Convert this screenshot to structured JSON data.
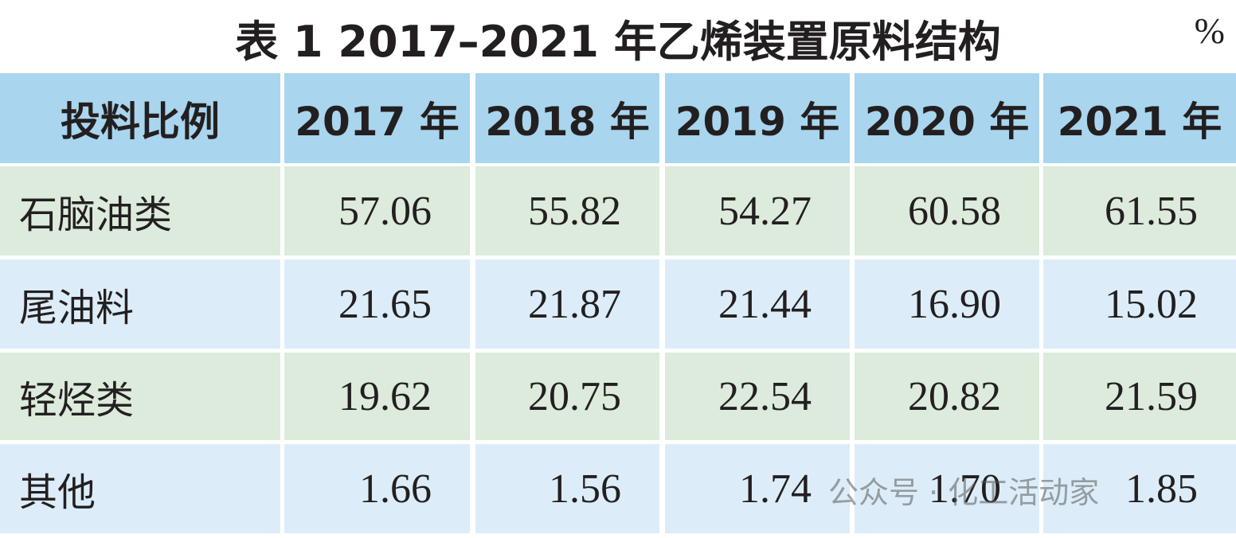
{
  "header": {
    "title": "表 1  2017–2021 年乙烯装置原料结构",
    "unit": "%"
  },
  "table": {
    "columns": [
      "投料比例",
      "2017 年",
      "2018 年",
      "2019 年",
      "2020 年",
      "2021 年"
    ],
    "rows": [
      [
        "石脑油类",
        "57.06",
        "55.82",
        "54.27",
        "60.58",
        "61.55"
      ],
      [
        "尾油料",
        "21.65",
        "21.87",
        "21.44",
        "16.90",
        "15.02"
      ],
      [
        "轻烃类",
        "19.62",
        "20.75",
        "22.54",
        "20.82",
        "21.59"
      ],
      [
        "其他",
        "1.66",
        "1.56",
        "1.74",
        "1.70",
        "1.85"
      ]
    ]
  },
  "watermark": "公众号 · 化工活动家"
}
